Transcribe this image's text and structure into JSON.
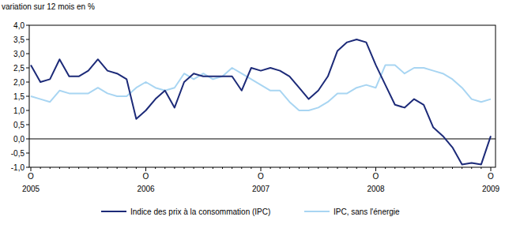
{
  "chart_data": {
    "type": "line",
    "ylabel": "variation sur 12 mois en %",
    "categories": [
      "O",
      null,
      null,
      null,
      null,
      null,
      null,
      null,
      null,
      null,
      null,
      null,
      "O",
      null,
      null,
      null,
      null,
      null,
      null,
      null,
      null,
      null,
      null,
      null,
      "O",
      null,
      null,
      null,
      null,
      null,
      null,
      null,
      null,
      null,
      null,
      null,
      "O",
      null,
      null,
      null,
      null,
      null,
      null,
      null,
      null,
      null,
      null,
      null,
      "O"
    ],
    "years": [
      "2005",
      "2006",
      "2007",
      "2008",
      "2009"
    ],
    "series": [
      {
        "name": "Indice des prix à la consommation (IPC)",
        "color": "#1c2a78",
        "values": [
          2.6,
          2.0,
          2.1,
          2.8,
          2.2,
          2.2,
          2.4,
          2.8,
          2.4,
          2.3,
          2.1,
          0.7,
          1.0,
          1.4,
          1.7,
          1.1,
          2.0,
          2.3,
          2.2,
          2.2,
          2.2,
          2.2,
          1.7,
          2.5,
          2.4,
          2.5,
          2.4,
          2.2,
          1.8,
          1.4,
          1.7,
          2.2,
          3.1,
          3.4,
          3.5,
          3.4,
          2.6,
          1.9,
          1.2,
          1.1,
          1.4,
          1.2,
          0.4,
          0.1,
          -0.3,
          -0.9,
          -0.85,
          -0.9,
          0.1
        ]
      },
      {
        "name": "IPC, sans l'énergie",
        "color": "#a8d5f2",
        "values": [
          1.5,
          1.4,
          1.3,
          1.7,
          1.6,
          1.6,
          1.6,
          1.8,
          1.6,
          1.5,
          1.5,
          1.8,
          2.0,
          1.8,
          1.7,
          1.8,
          2.3,
          2.1,
          2.3,
          2.1,
          2.2,
          2.5,
          2.3,
          2.1,
          1.9,
          1.7,
          1.7,
          1.3,
          1.0,
          1.0,
          1.1,
          1.3,
          1.6,
          1.6,
          1.8,
          1.9,
          1.8,
          2.6,
          2.6,
          2.3,
          2.5,
          2.5,
          2.4,
          2.3,
          2.1,
          1.8,
          1.4,
          1.3,
          1.4
        ]
      }
    ],
    "ylim": [
      -1,
      4
    ],
    "yticks": [
      {
        "value": 4,
        "label": "4,0"
      },
      {
        "value": 3.5,
        "label": "3,5"
      },
      {
        "value": 3,
        "label": "3,0"
      },
      {
        "value": 2.5,
        "label": "2,5"
      },
      {
        "value": 2,
        "label": "2,0"
      },
      {
        "value": 1.5,
        "label": "1,5"
      },
      {
        "value": 1,
        "label": "1,0"
      },
      {
        "value": 0.5,
        "label": "0,5"
      },
      {
        "value": 0,
        "label": "0,0"
      },
      {
        "value": -0.5,
        "label": "-0,5"
      },
      {
        "value": -1,
        "label": "-1,0"
      }
    ],
    "grid": false,
    "legend": "bottom"
  }
}
